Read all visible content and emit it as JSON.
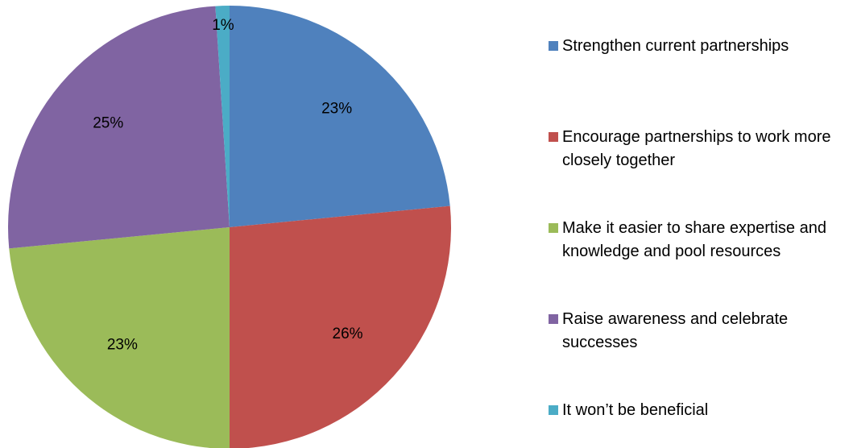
{
  "chart_data": {
    "type": "pie",
    "title": "",
    "legend_position": "right",
    "slices": [
      {
        "label": "Strengthen current partnerships",
        "value": 23,
        "display": "23%",
        "color": "#4F81BD"
      },
      {
        "label": "Encourage partnerships to work more closely together",
        "value": 26,
        "display": "26%",
        "color": "#C0504D"
      },
      {
        "label": "Make it easier to share expertise and knowledge and pool resources",
        "value": 23,
        "display": "23%",
        "color": "#9BBB59"
      },
      {
        "label": "Raise awareness and celebrate successes",
        "value": 25,
        "display": "25%",
        "color": "#8064A2"
      },
      {
        "label": "It won’t be beneficial",
        "value": 1,
        "display": "1%",
        "color": "#4BACC6"
      }
    ]
  }
}
